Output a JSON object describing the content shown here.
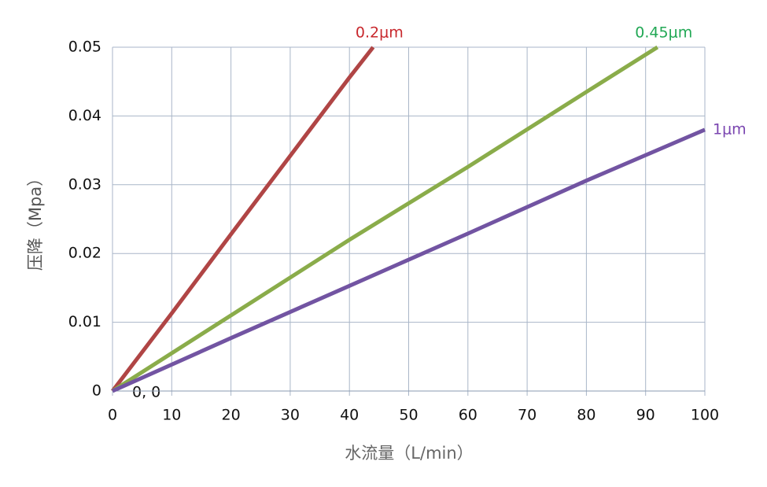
{
  "chart_data": {
    "type": "line",
    "xlabel": "水流量（L/min）",
    "ylabel": "压降（Mpa）",
    "annotation": "0, 0",
    "xlim": [
      0,
      100
    ],
    "xticks": [
      0,
      10,
      20,
      30,
      40,
      50,
      60,
      70,
      80,
      90,
      100
    ],
    "ylim": [
      0,
      0.05
    ],
    "yticks": [
      0,
      0.01,
      0.02,
      0.03,
      0.04,
      0.05
    ],
    "grid": true,
    "series": [
      {
        "name": "0.2μm",
        "color": "#b04545",
        "label_color": "#c8282d",
        "x": [
          0,
          10,
          20,
          30,
          40,
          44
        ],
        "values": [
          0,
          0.0113,
          0.0228,
          0.0342,
          0.0456,
          0.05
        ]
      },
      {
        "name": "0.45μm",
        "color": "#8aac4a",
        "label_color": "#22a855",
        "x": [
          0,
          20,
          40,
          60,
          80,
          92
        ],
        "values": [
          0,
          0.011,
          0.022,
          0.0326,
          0.0435,
          0.05
        ]
      },
      {
        "name": "1μm",
        "color": "#7254a2",
        "label_color": "#7a45b0",
        "x": [
          0,
          20,
          40,
          60,
          80,
          100
        ],
        "values": [
          0,
          0.0077,
          0.0153,
          0.0229,
          0.0306,
          0.038
        ]
      }
    ]
  }
}
